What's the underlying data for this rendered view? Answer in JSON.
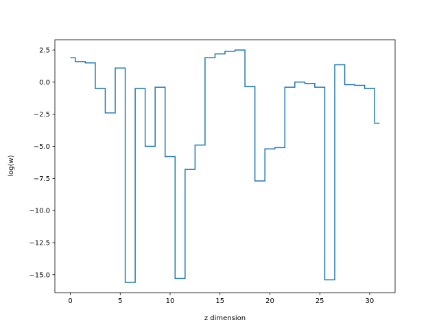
{
  "chart_data": {
    "type": "line",
    "drawstyle": "steps-mid",
    "title": "",
    "xlabel": "z dimension",
    "ylabel": "log(w)",
    "xlim": [
      -1.55,
      32.55
    ],
    "ylim": [
      -16.4,
      3.3
    ],
    "xticks": [
      0,
      5,
      10,
      15,
      20,
      25,
      30
    ],
    "xtick_labels": [
      "0",
      "5",
      "10",
      "15",
      "20",
      "25",
      "30"
    ],
    "yticks": [
      -15.0,
      -12.5,
      -10.0,
      -7.5,
      -5.0,
      -2.5,
      0.0,
      2.5
    ],
    "ytick_labels": [
      "−15.0",
      "−12.5",
      "−10.0",
      "−7.5",
      "−5.0",
      "−2.5",
      "0.0",
      "2.5"
    ],
    "grid": false,
    "series": [
      {
        "color": "#1f77b4",
        "x": [
          0,
          1,
          2,
          3,
          4,
          5,
          6,
          7,
          8,
          9,
          10,
          11,
          12,
          13,
          14,
          15,
          16,
          17,
          18,
          19,
          20,
          21,
          22,
          23,
          24,
          25,
          26,
          27,
          28,
          29,
          30,
          31
        ],
        "values": [
          1.9,
          1.6,
          1.5,
          -0.5,
          -2.4,
          1.1,
          -15.6,
          -0.5,
          -5.0,
          -0.4,
          -5.8,
          -15.3,
          -6.8,
          -4.9,
          1.9,
          2.2,
          2.4,
          2.5,
          -0.35,
          -7.7,
          -5.2,
          -5.1,
          -0.4,
          0.0,
          -0.1,
          -0.4,
          -15.4,
          1.35,
          -0.2,
          -0.25,
          -0.5,
          -3.2
        ]
      }
    ]
  }
}
